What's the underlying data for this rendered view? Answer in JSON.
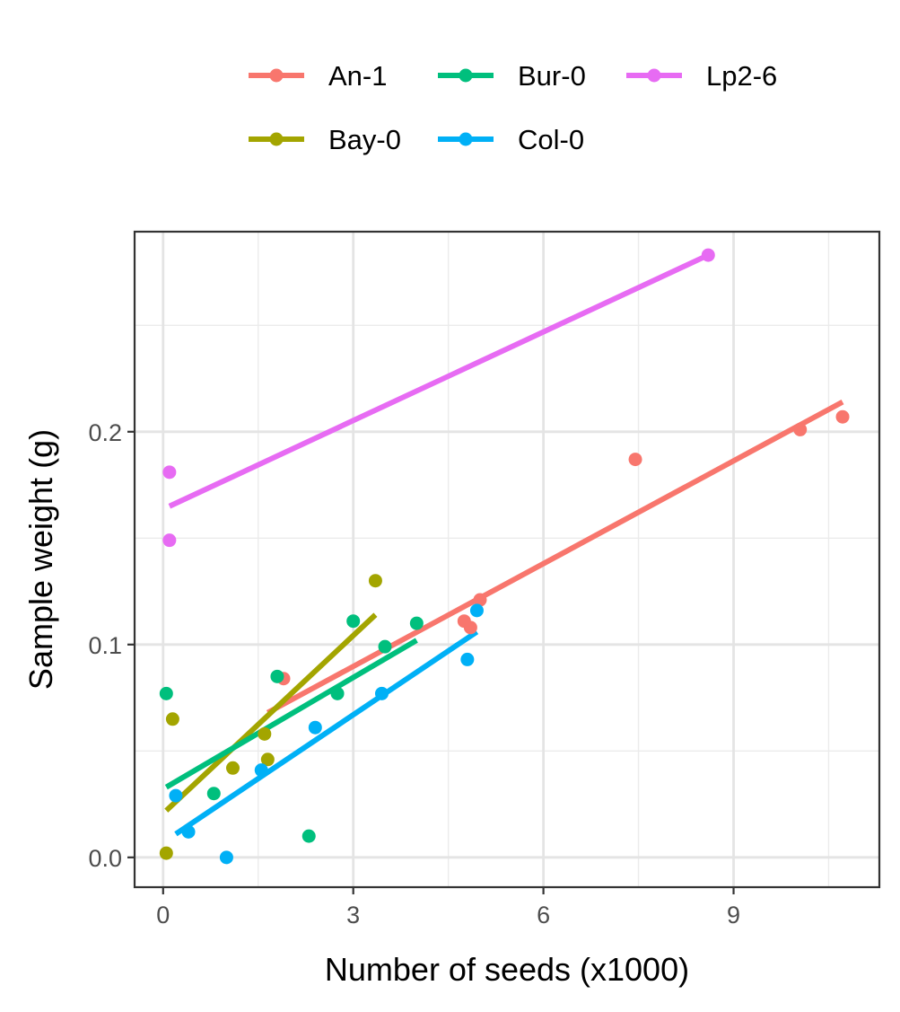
{
  "chart_data": {
    "type": "scatter",
    "xlabel": "Number of seeds (x1000)",
    "ylabel": "Sample weight (g)",
    "xlim": [
      -0.45,
      11.3
    ],
    "ylim": [
      -0.014,
      0.294
    ],
    "x_ticks": [
      0,
      3,
      6,
      9
    ],
    "x_tick_labels": [
      "0",
      "3",
      "6",
      "9"
    ],
    "y_ticks": [
      0.0,
      0.1,
      0.2
    ],
    "y_tick_labels": [
      "0.0",
      "0.1",
      "0.2"
    ],
    "grid": true,
    "legend_position": "top",
    "series": [
      {
        "name": "An-1",
        "color": "#F8766D",
        "points": [
          [
            1.9,
            0.084
          ],
          [
            4.75,
            0.111
          ],
          [
            4.85,
            0.108
          ],
          [
            5.0,
            0.121
          ],
          [
            7.45,
            0.187
          ],
          [
            10.05,
            0.201
          ],
          [
            10.72,
            0.207
          ]
        ],
        "fit": [
          [
            1.65,
            0.068
          ],
          [
            10.72,
            0.214
          ]
        ]
      },
      {
        "name": "Bay-0",
        "color": "#A3A500",
        "points": [
          [
            0.05,
            0.002
          ],
          [
            0.15,
            0.065
          ],
          [
            1.1,
            0.042
          ],
          [
            1.6,
            0.058
          ],
          [
            1.65,
            0.046
          ],
          [
            3.35,
            0.13
          ]
        ],
        "fit": [
          [
            0.05,
            0.022
          ],
          [
            3.35,
            0.114
          ]
        ]
      },
      {
        "name": "Bur-0",
        "color": "#00BF7D",
        "points": [
          [
            0.05,
            0.077
          ],
          [
            0.8,
            0.03
          ],
          [
            1.8,
            0.085
          ],
          [
            2.3,
            0.01
          ],
          [
            2.75,
            0.077
          ],
          [
            3.0,
            0.111
          ],
          [
            3.5,
            0.099
          ],
          [
            4.0,
            0.11
          ]
        ],
        "fit": [
          [
            0.05,
            0.033
          ],
          [
            4.0,
            0.102
          ]
        ]
      },
      {
        "name": "Col-0",
        "color": "#00B0F6",
        "points": [
          [
            0.2,
            0.029
          ],
          [
            0.4,
            0.012
          ],
          [
            1.0,
            0.0
          ],
          [
            1.55,
            0.041
          ],
          [
            2.4,
            0.061
          ],
          [
            3.45,
            0.077
          ],
          [
            4.8,
            0.093
          ],
          [
            4.95,
            0.116
          ]
        ],
        "fit": [
          [
            0.2,
            0.011
          ],
          [
            4.95,
            0.106
          ]
        ]
      },
      {
        "name": "Lp2-6",
        "color": "#E76BF3",
        "points": [
          [
            0.1,
            0.181
          ],
          [
            0.1,
            0.149
          ],
          [
            8.6,
            0.283
          ]
        ],
        "fit": [
          [
            0.1,
            0.165
          ],
          [
            8.6,
            0.283
          ]
        ]
      }
    ],
    "legend_rows": [
      [
        "An-1",
        "Bur-0",
        "Lp2-6"
      ],
      [
        "Bay-0",
        "Col-0"
      ]
    ]
  }
}
